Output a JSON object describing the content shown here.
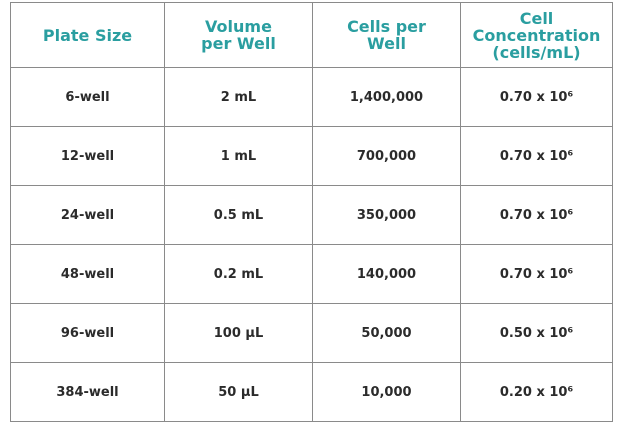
{
  "table": {
    "header": [
      [
        "Plate Size"
      ],
      [
        "Volume",
        "per Well"
      ],
      [
        "Cells per",
        "Well"
      ],
      [
        "Cell",
        "Concentration",
        "(cells/mL)"
      ]
    ],
    "rows": [
      [
        "6-well",
        "2 mL",
        "1,400,000",
        "0.70 x 10⁶"
      ],
      [
        "12-well",
        "1 mL",
        "700,000",
        "0.70 x 10⁶"
      ],
      [
        "24-well",
        "0.5 mL",
        "350,000",
        "0.70 x 10⁶"
      ],
      [
        "48-well",
        "0.2 mL",
        "140,000",
        "0.70 x 10⁶"
      ],
      [
        "96-well",
        "100 µL",
        "50,000",
        "0.50 x 10⁶"
      ],
      [
        "384-well",
        "50 µL",
        "10,000",
        "0.20 x 10⁶"
      ]
    ]
  }
}
